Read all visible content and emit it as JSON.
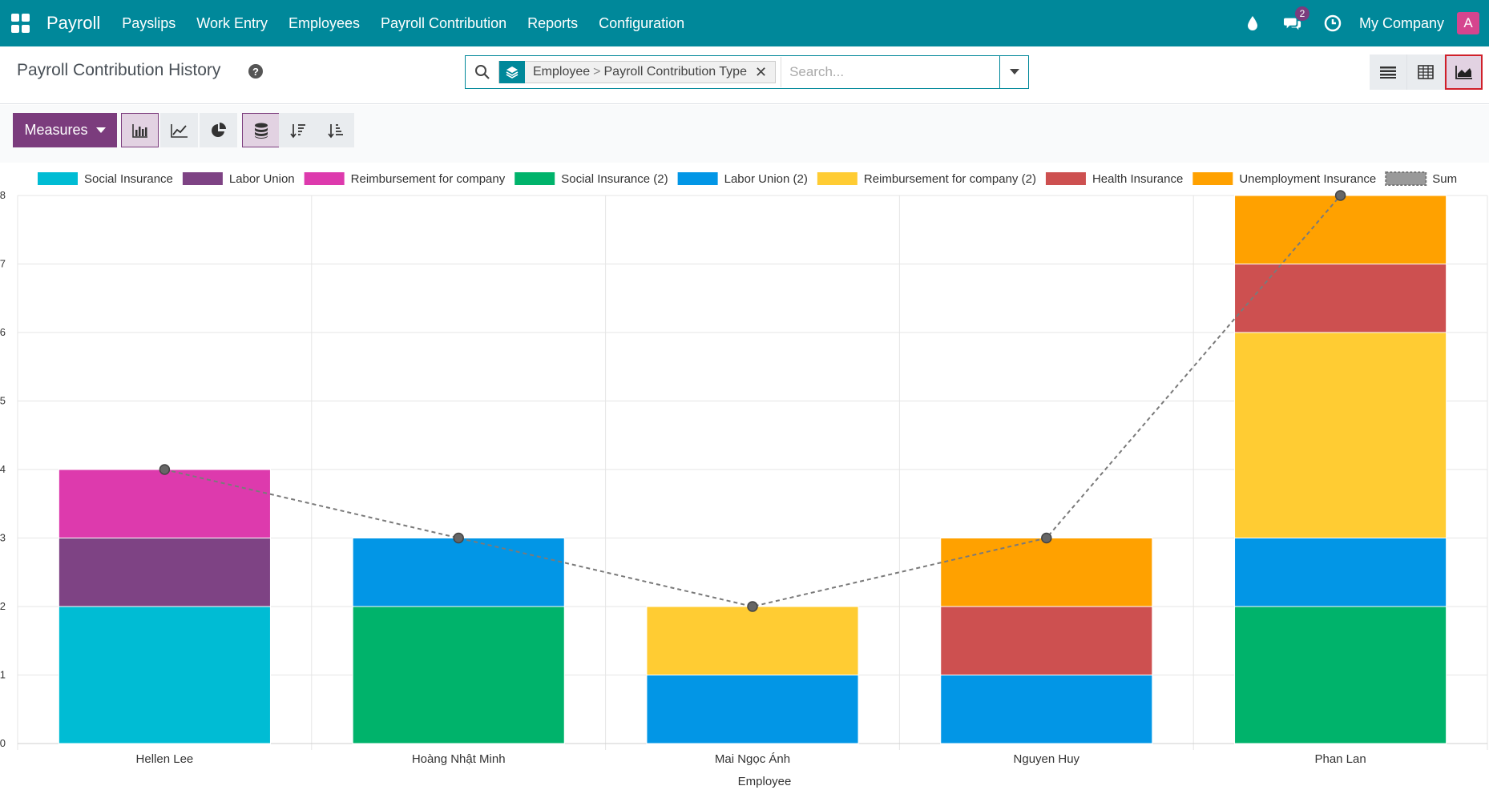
{
  "navbar": {
    "brand": "Payroll",
    "menu": [
      "Payslips",
      "Work Entry",
      "Employees",
      "Payroll Contribution",
      "Reports",
      "Configuration"
    ],
    "chat_count": "2",
    "company": "My Company",
    "avatar_letter": "A"
  },
  "control": {
    "title": "Payroll Contribution History",
    "help": "?",
    "facet_group_1": "Employee",
    "facet_separator": ">",
    "facet_group_2": "Payroll Contribution Type",
    "facet_close": "✕",
    "search_placeholder": "Search..."
  },
  "toolbar": {
    "measures_label": "Measures"
  },
  "colors": {
    "navbar": "#00889a",
    "accent": "#7b3c7d"
  },
  "chart_data": {
    "type": "bar",
    "stacked": true,
    "xlabel": "Employee",
    "ylabel": "",
    "ylim": [
      0,
      8
    ],
    "yticks": [
      0,
      1,
      2,
      3,
      4,
      5,
      6,
      7,
      8
    ],
    "grid": true,
    "legend_position": "top",
    "categories": [
      "Hellen Lee",
      "Hoàng Nhật Minh",
      "Mai Ngọc Ánh",
      "Nguyen Huy",
      "Phan Lan"
    ],
    "series": [
      {
        "name": "Social Insurance",
        "color": "#00bcd4",
        "values": [
          2,
          0,
          0,
          0,
          0
        ]
      },
      {
        "name": "Labor Union",
        "color": "#7e4384",
        "values": [
          1,
          0,
          0,
          0,
          0
        ]
      },
      {
        "name": "Reimbursement for company",
        "color": "#dd3aad",
        "values": [
          1,
          0,
          0,
          0,
          0
        ]
      },
      {
        "name": "Social Insurance (2)",
        "color": "#00b36b",
        "values": [
          0,
          2,
          0,
          0,
          2
        ]
      },
      {
        "name": "Labor Union (2)",
        "color": "#0296e6",
        "values": [
          0,
          1,
          1,
          1,
          1
        ]
      },
      {
        "name": "Reimbursement for company (2)",
        "color": "#ffcc33",
        "values": [
          0,
          0,
          1,
          0,
          3
        ]
      },
      {
        "name": "Health Insurance",
        "color": "#cd5050",
        "values": [
          0,
          0,
          0,
          1,
          1
        ]
      },
      {
        "name": "Unemployment Insurance",
        "color": "#ffa100",
        "values": [
          0,
          0,
          0,
          1,
          1
        ]
      }
    ],
    "sum_series": {
      "name": "Sum",
      "color": "#7a7a7a",
      "values": [
        4,
        3,
        2,
        3,
        8
      ]
    }
  }
}
